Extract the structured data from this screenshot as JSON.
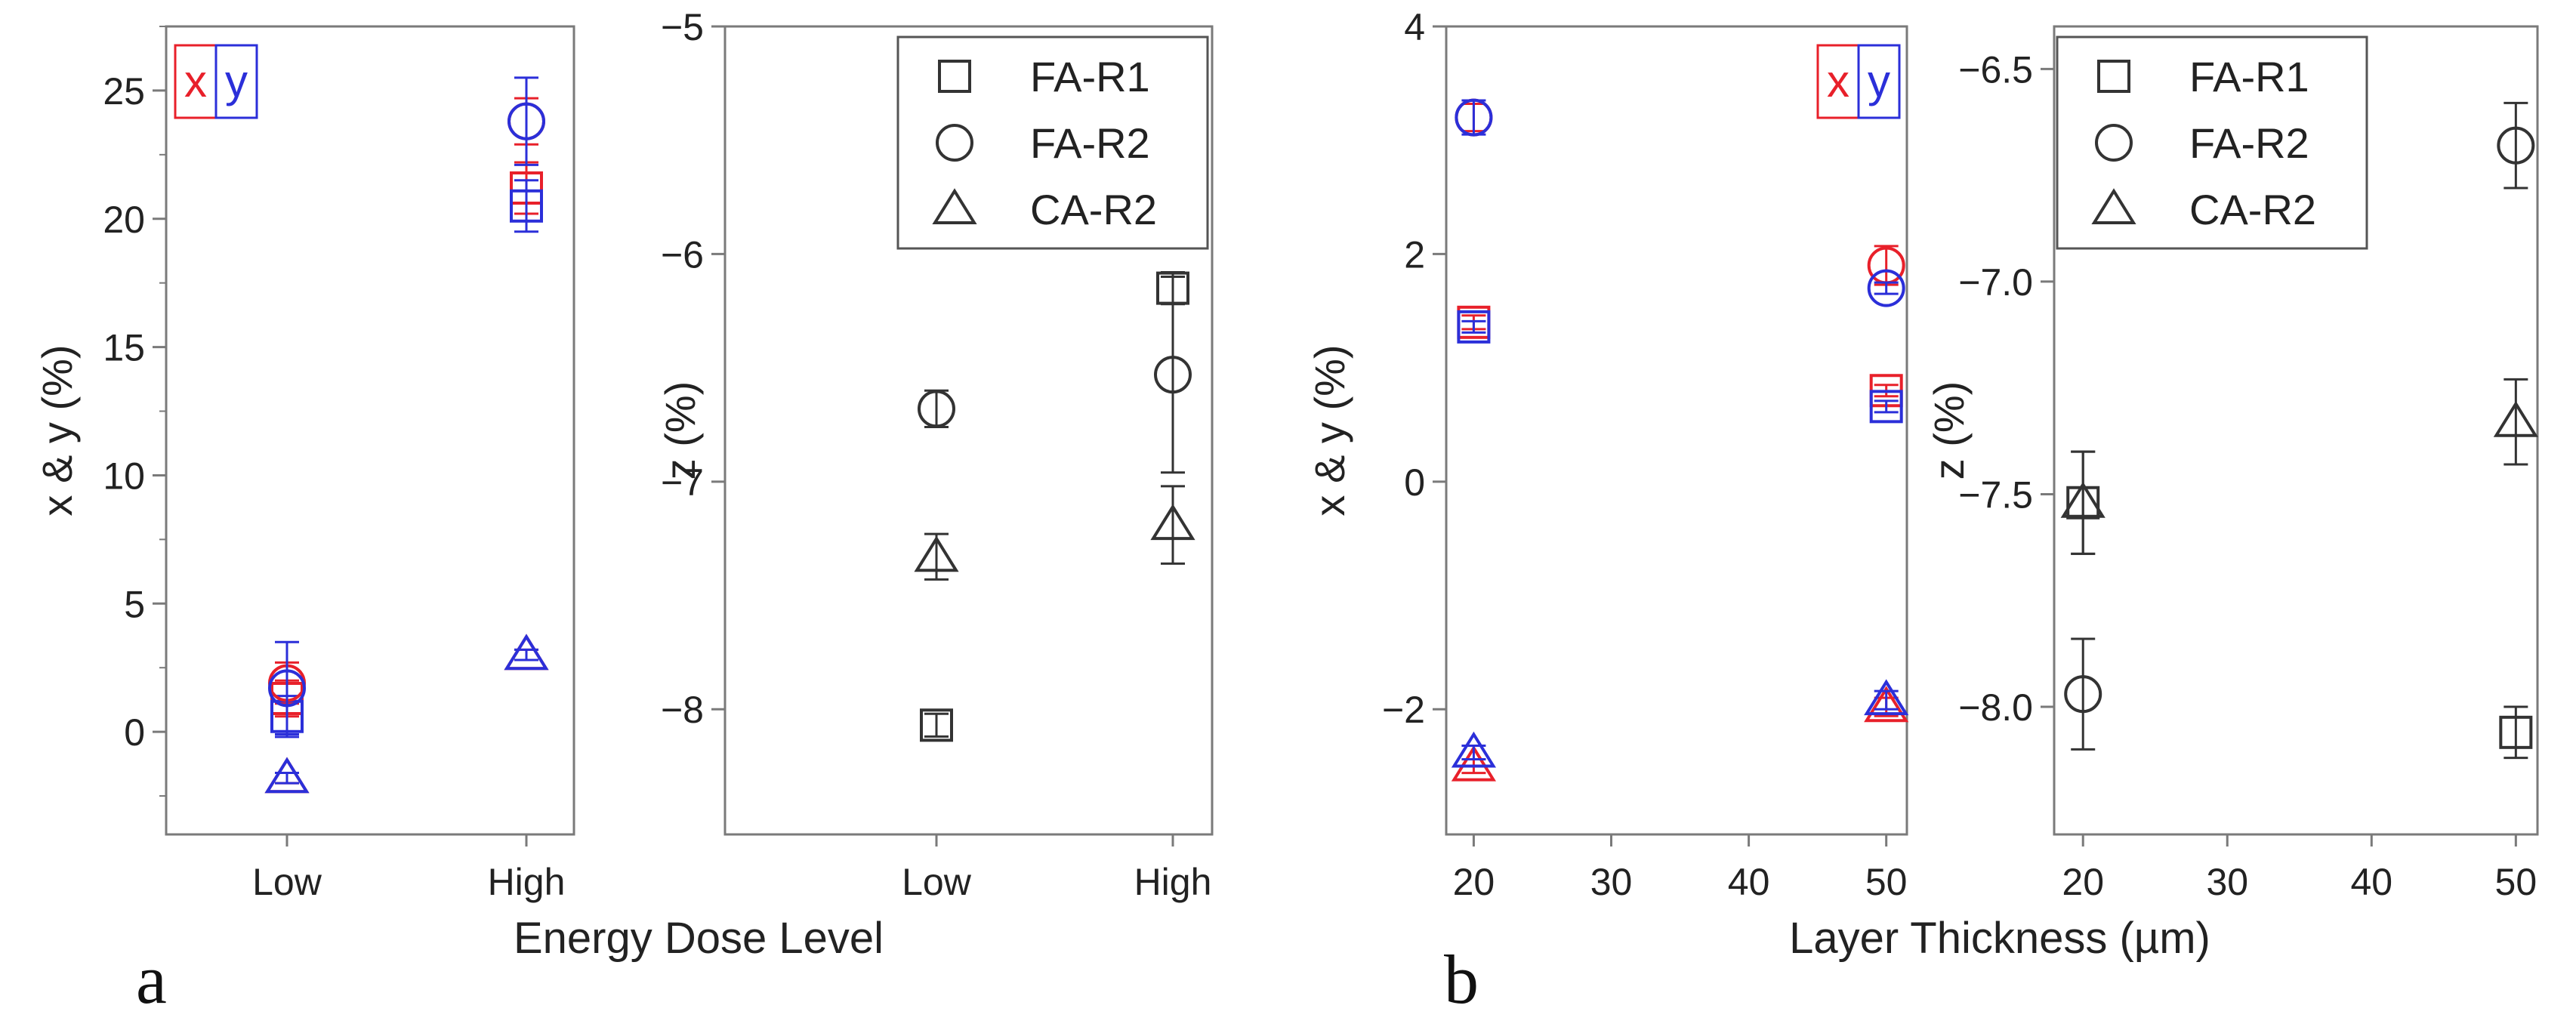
{
  "figure": {
    "panel_letters": [
      "a",
      "b"
    ],
    "xlabels": [
      "Energy Dose Level",
      "Layer Thickness (µm)"
    ]
  },
  "colors": {
    "x": "#e8202a",
    "y": "#2b2fd9",
    "z": "#333333",
    "axis": "#7a7a7a"
  },
  "legend_xy": {
    "x_label": "x",
    "y_label": "y"
  },
  "legend_z": {
    "entries": [
      {
        "label": "FA-R1",
        "marker": "square"
      },
      {
        "label": "FA-R2",
        "marker": "circle"
      },
      {
        "label": "CA-R2",
        "marker": "triangle"
      }
    ]
  },
  "chart_data": [
    {
      "id": "a-xy",
      "type": "scatter",
      "title": "",
      "xlabel": "",
      "ylabel": "x & y (%)",
      "categories": [
        "Low",
        "High"
      ],
      "ylim": [
        -4,
        27.5
      ],
      "yticks": [
        0,
        5,
        10,
        15,
        20,
        25
      ],
      "legend": "top-left",
      "series": [
        {
          "name": "x",
          "marker": "square",
          "values": [
            1.3,
            21.2
          ],
          "err": [
            0.7,
            1.0
          ]
        },
        {
          "name": "y",
          "marker": "square",
          "values": [
            0.6,
            20.5
          ],
          "err": [
            0.8,
            1.0
          ]
        },
        {
          "name": "x",
          "marker": "circle",
          "values": [
            1.9,
            23.8
          ],
          "err": [
            0.8,
            0.9
          ]
        },
        {
          "name": "y",
          "marker": "circle",
          "values": [
            1.7,
            23.8
          ],
          "err": [
            1.8,
            1.7
          ]
        },
        {
          "name": "x",
          "marker": "triangle",
          "values": [
            -1.8,
            3.0
          ],
          "err": [
            0.2,
            0.2
          ]
        },
        {
          "name": "y",
          "marker": "triangle",
          "values": [
            -1.8,
            3.0
          ],
          "err": [
            0.2,
            0.2
          ]
        }
      ]
    },
    {
      "id": "a-z",
      "type": "scatter",
      "title": "",
      "xlabel": "",
      "ylabel": "z (%)",
      "categories": [
        "Low",
        "High"
      ],
      "ylim": [
        -8.55,
        -5
      ],
      "yticks": [
        -8,
        -7,
        -6,
        -5
      ],
      "legend": "top-right",
      "series": [
        {
          "name": "FA-R1",
          "marker": "square",
          "values": [
            -8.07,
            -6.15
          ],
          "err": [
            0.05,
            0.07
          ]
        },
        {
          "name": "FA-R2",
          "marker": "circle",
          "values": [
            -6.68,
            -6.53
          ],
          "err": [
            0.08,
            0.43
          ]
        },
        {
          "name": "CA-R2",
          "marker": "triangle",
          "values": [
            -7.33,
            -7.19
          ],
          "err": [
            0.1,
            0.17
          ]
        }
      ]
    },
    {
      "id": "b-xy",
      "type": "scatter",
      "title": "",
      "xlabel": "",
      "ylabel": "x & y (%)",
      "x": [
        20,
        50
      ],
      "xlim": [
        18,
        51.5
      ],
      "xticks": [
        20,
        30,
        40,
        50
      ],
      "ylim": [
        -3.1,
        4
      ],
      "yticks": [
        -2,
        0,
        2,
        4
      ],
      "legend": "top-right",
      "series": [
        {
          "name": "x",
          "marker": "square",
          "values": [
            1.4,
            0.8
          ],
          "err": [
            0.06,
            0.05
          ]
        },
        {
          "name": "y",
          "marker": "square",
          "values": [
            1.36,
            0.66
          ],
          "err": [
            0.05,
            0.05
          ]
        },
        {
          "name": "x",
          "marker": "circle",
          "values": [
            3.2,
            1.9
          ],
          "err": [
            0.12,
            0.17
          ]
        },
        {
          "name": "y",
          "marker": "circle",
          "values": [
            3.2,
            1.7
          ],
          "err": [
            0.15,
            0.05
          ]
        },
        {
          "name": "x",
          "marker": "triangle",
          "values": [
            -2.5,
            -1.98
          ],
          "err": [
            0.06,
            0.08
          ]
        },
        {
          "name": "y",
          "marker": "triangle",
          "values": [
            -2.38,
            -1.92
          ],
          "err": [
            0.06,
            0.08
          ]
        }
      ]
    },
    {
      "id": "b-z",
      "type": "scatter",
      "title": "",
      "xlabel": "",
      "ylabel": "z (%)",
      "x": [
        20,
        50
      ],
      "xlim": [
        18,
        51.5
      ],
      "xticks": [
        20,
        30,
        40,
        50
      ],
      "ylim": [
        -8.3,
        -6.4
      ],
      "yticks": [
        -8.0,
        -7.5,
        -7.0,
        -6.5
      ],
      "legend": "top-left",
      "series": [
        {
          "name": "FA-R1",
          "marker": "square",
          "values": [
            -7.52,
            -8.06
          ],
          "err": [
            0.12,
            0.06
          ]
        },
        {
          "name": "FA-R2",
          "marker": "circle",
          "values": [
            -7.97,
            -6.68
          ],
          "err": [
            0.13,
            0.1
          ]
        },
        {
          "name": "CA-R2",
          "marker": "triangle",
          "values": [
            -7.52,
            -7.33
          ],
          "err": [
            0.12,
            0.1
          ]
        }
      ]
    }
  ]
}
